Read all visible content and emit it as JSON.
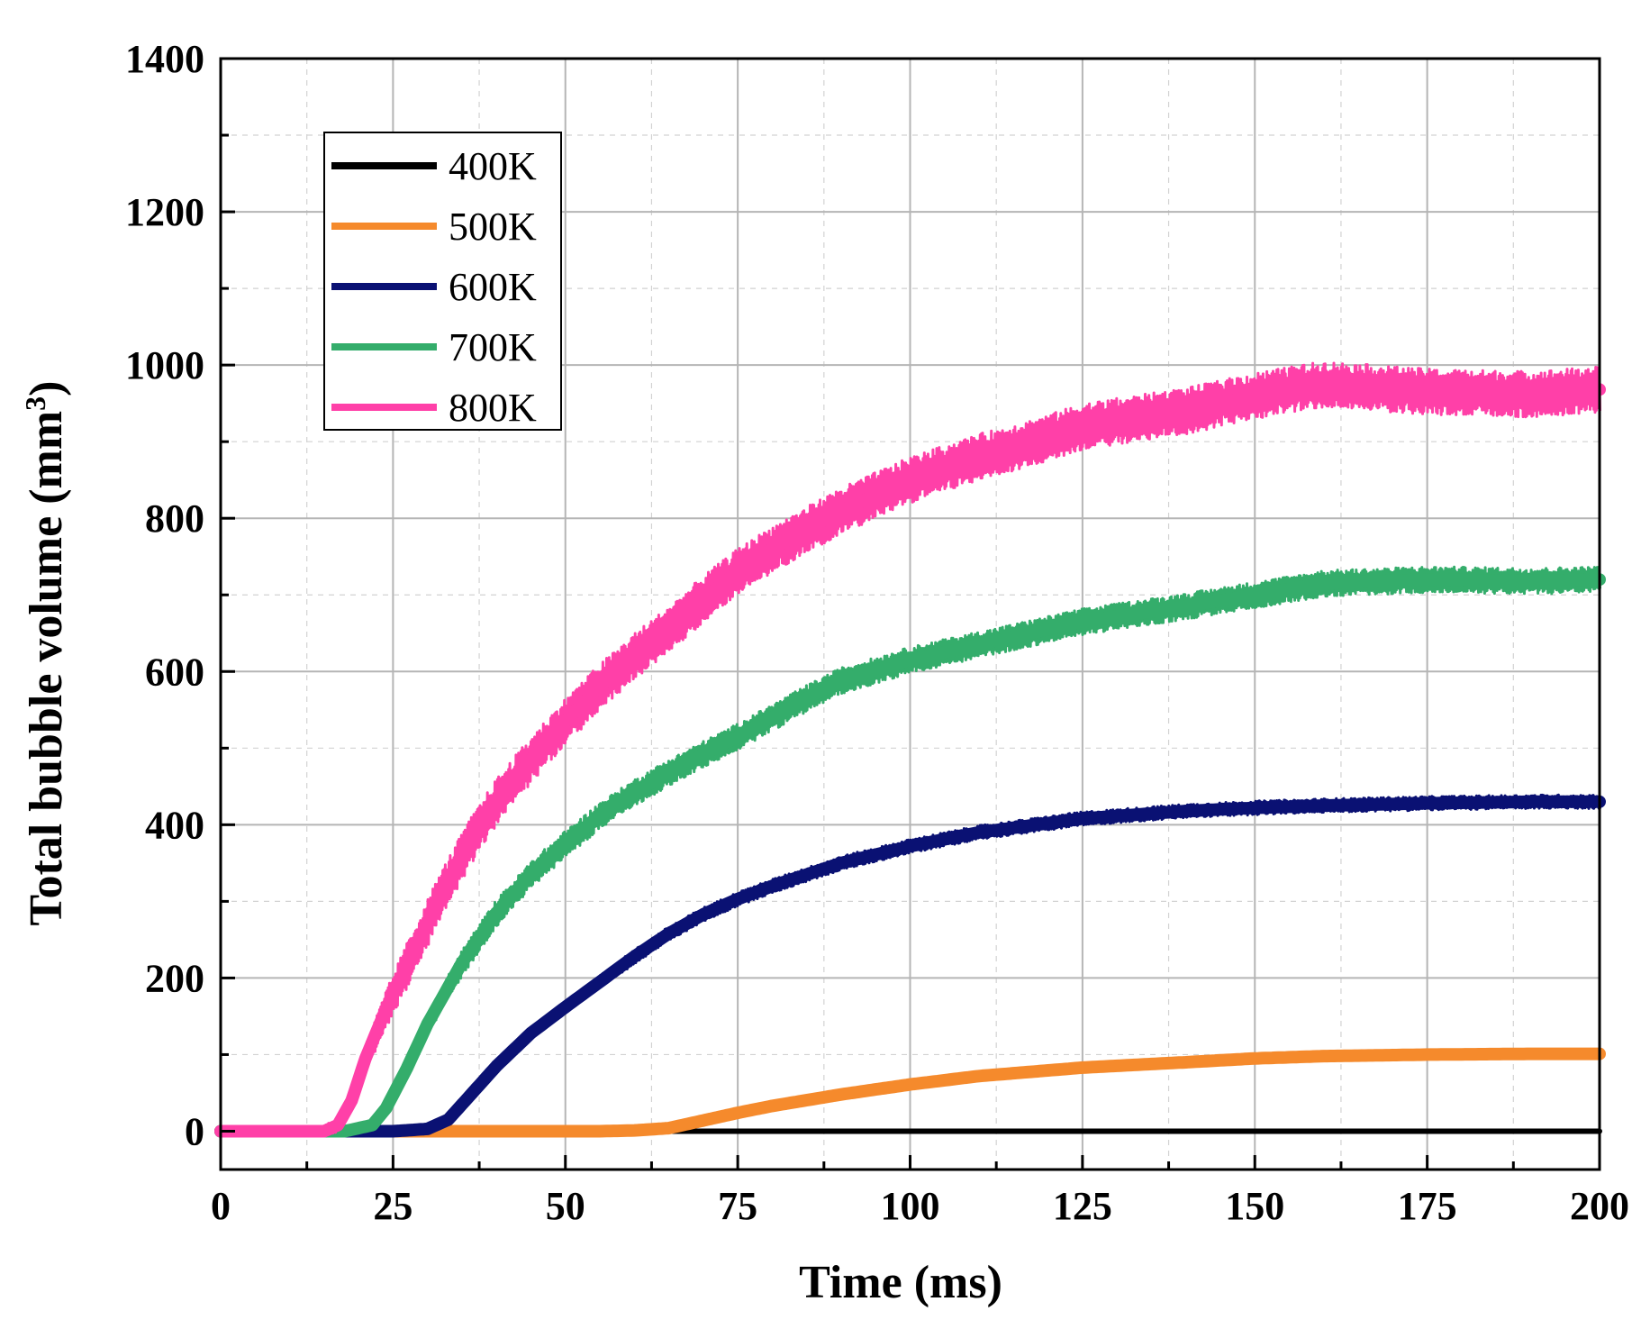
{
  "chart_data": {
    "type": "line",
    "title": "",
    "xlabel": "Time (ms)",
    "ylabel": "Total bubble volume (mm",
    "ylabel_superscript": "3",
    "ylabel_close": ")",
    "xlim": [
      0,
      200
    ],
    "ylim": [
      -50,
      1400
    ],
    "xticks": [
      0,
      25,
      50,
      75,
      100,
      125,
      150,
      175,
      200
    ],
    "yticks": [
      0,
      200,
      400,
      600,
      800,
      1000,
      1200,
      1400
    ],
    "grid": true,
    "legend_position": "top-left",
    "series": [
      {
        "name": "400K",
        "color": "#000000",
        "noise": 0,
        "x": [
          0,
          200
        ],
        "y": [
          0,
          0
        ]
      },
      {
        "name": "500K",
        "color": "#f58a2c",
        "noise": 3,
        "x": [
          0,
          55,
          60,
          65,
          70,
          75,
          80,
          90,
          100,
          110,
          125,
          140,
          150,
          160,
          175,
          190,
          200
        ],
        "y": [
          0,
          0,
          1,
          4,
          14,
          24,
          33,
          48,
          61,
          72,
          83,
          90,
          95,
          98,
          100,
          101,
          101
        ]
      },
      {
        "name": "600K",
        "color": "#0a1173",
        "noise": 9,
        "x": [
          0,
          25,
          30,
          33,
          35,
          40,
          45,
          50,
          55,
          60,
          65,
          70,
          75,
          80,
          90,
          100,
          110,
          125,
          140,
          150,
          160,
          175,
          190,
          200
        ],
        "y": [
          0,
          0,
          3,
          15,
          35,
          85,
          128,
          162,
          195,
          228,
          258,
          283,
          303,
          320,
          350,
          372,
          390,
          408,
          418,
          422,
          425,
          428,
          430,
          430
        ]
      },
      {
        "name": "700K",
        "color": "#34ad6b",
        "noise": 17,
        "x": [
          0,
          18,
          22,
          24,
          27,
          30,
          35,
          40,
          45,
          50,
          55,
          60,
          65,
          70,
          75,
          80,
          85,
          90,
          100,
          110,
          125,
          140,
          150,
          160,
          175,
          190,
          200
        ],
        "y": [
          0,
          0,
          8,
          30,
          82,
          140,
          220,
          285,
          335,
          375,
          412,
          442,
          468,
          492,
          515,
          540,
          565,
          588,
          615,
          635,
          665,
          685,
          700,
          715,
          720,
          718,
          720
        ]
      },
      {
        "name": "800K",
        "color": "#ff40a8",
        "noise": 30,
        "x": [
          0,
          15,
          17,
          19,
          21,
          24,
          28,
          32,
          36,
          40,
          45,
          50,
          55,
          60,
          65,
          70,
          75,
          80,
          85,
          90,
          100,
          110,
          120,
          125,
          140,
          150,
          160,
          175,
          190,
          200
        ],
        "y": [
          0,
          0,
          8,
          40,
          95,
          160,
          235,
          310,
          375,
          430,
          485,
          535,
          580,
          620,
          655,
          695,
          730,
          760,
          785,
          810,
          850,
          880,
          905,
          920,
          940,
          960,
          975,
          965,
          962,
          968
        ]
      }
    ]
  }
}
